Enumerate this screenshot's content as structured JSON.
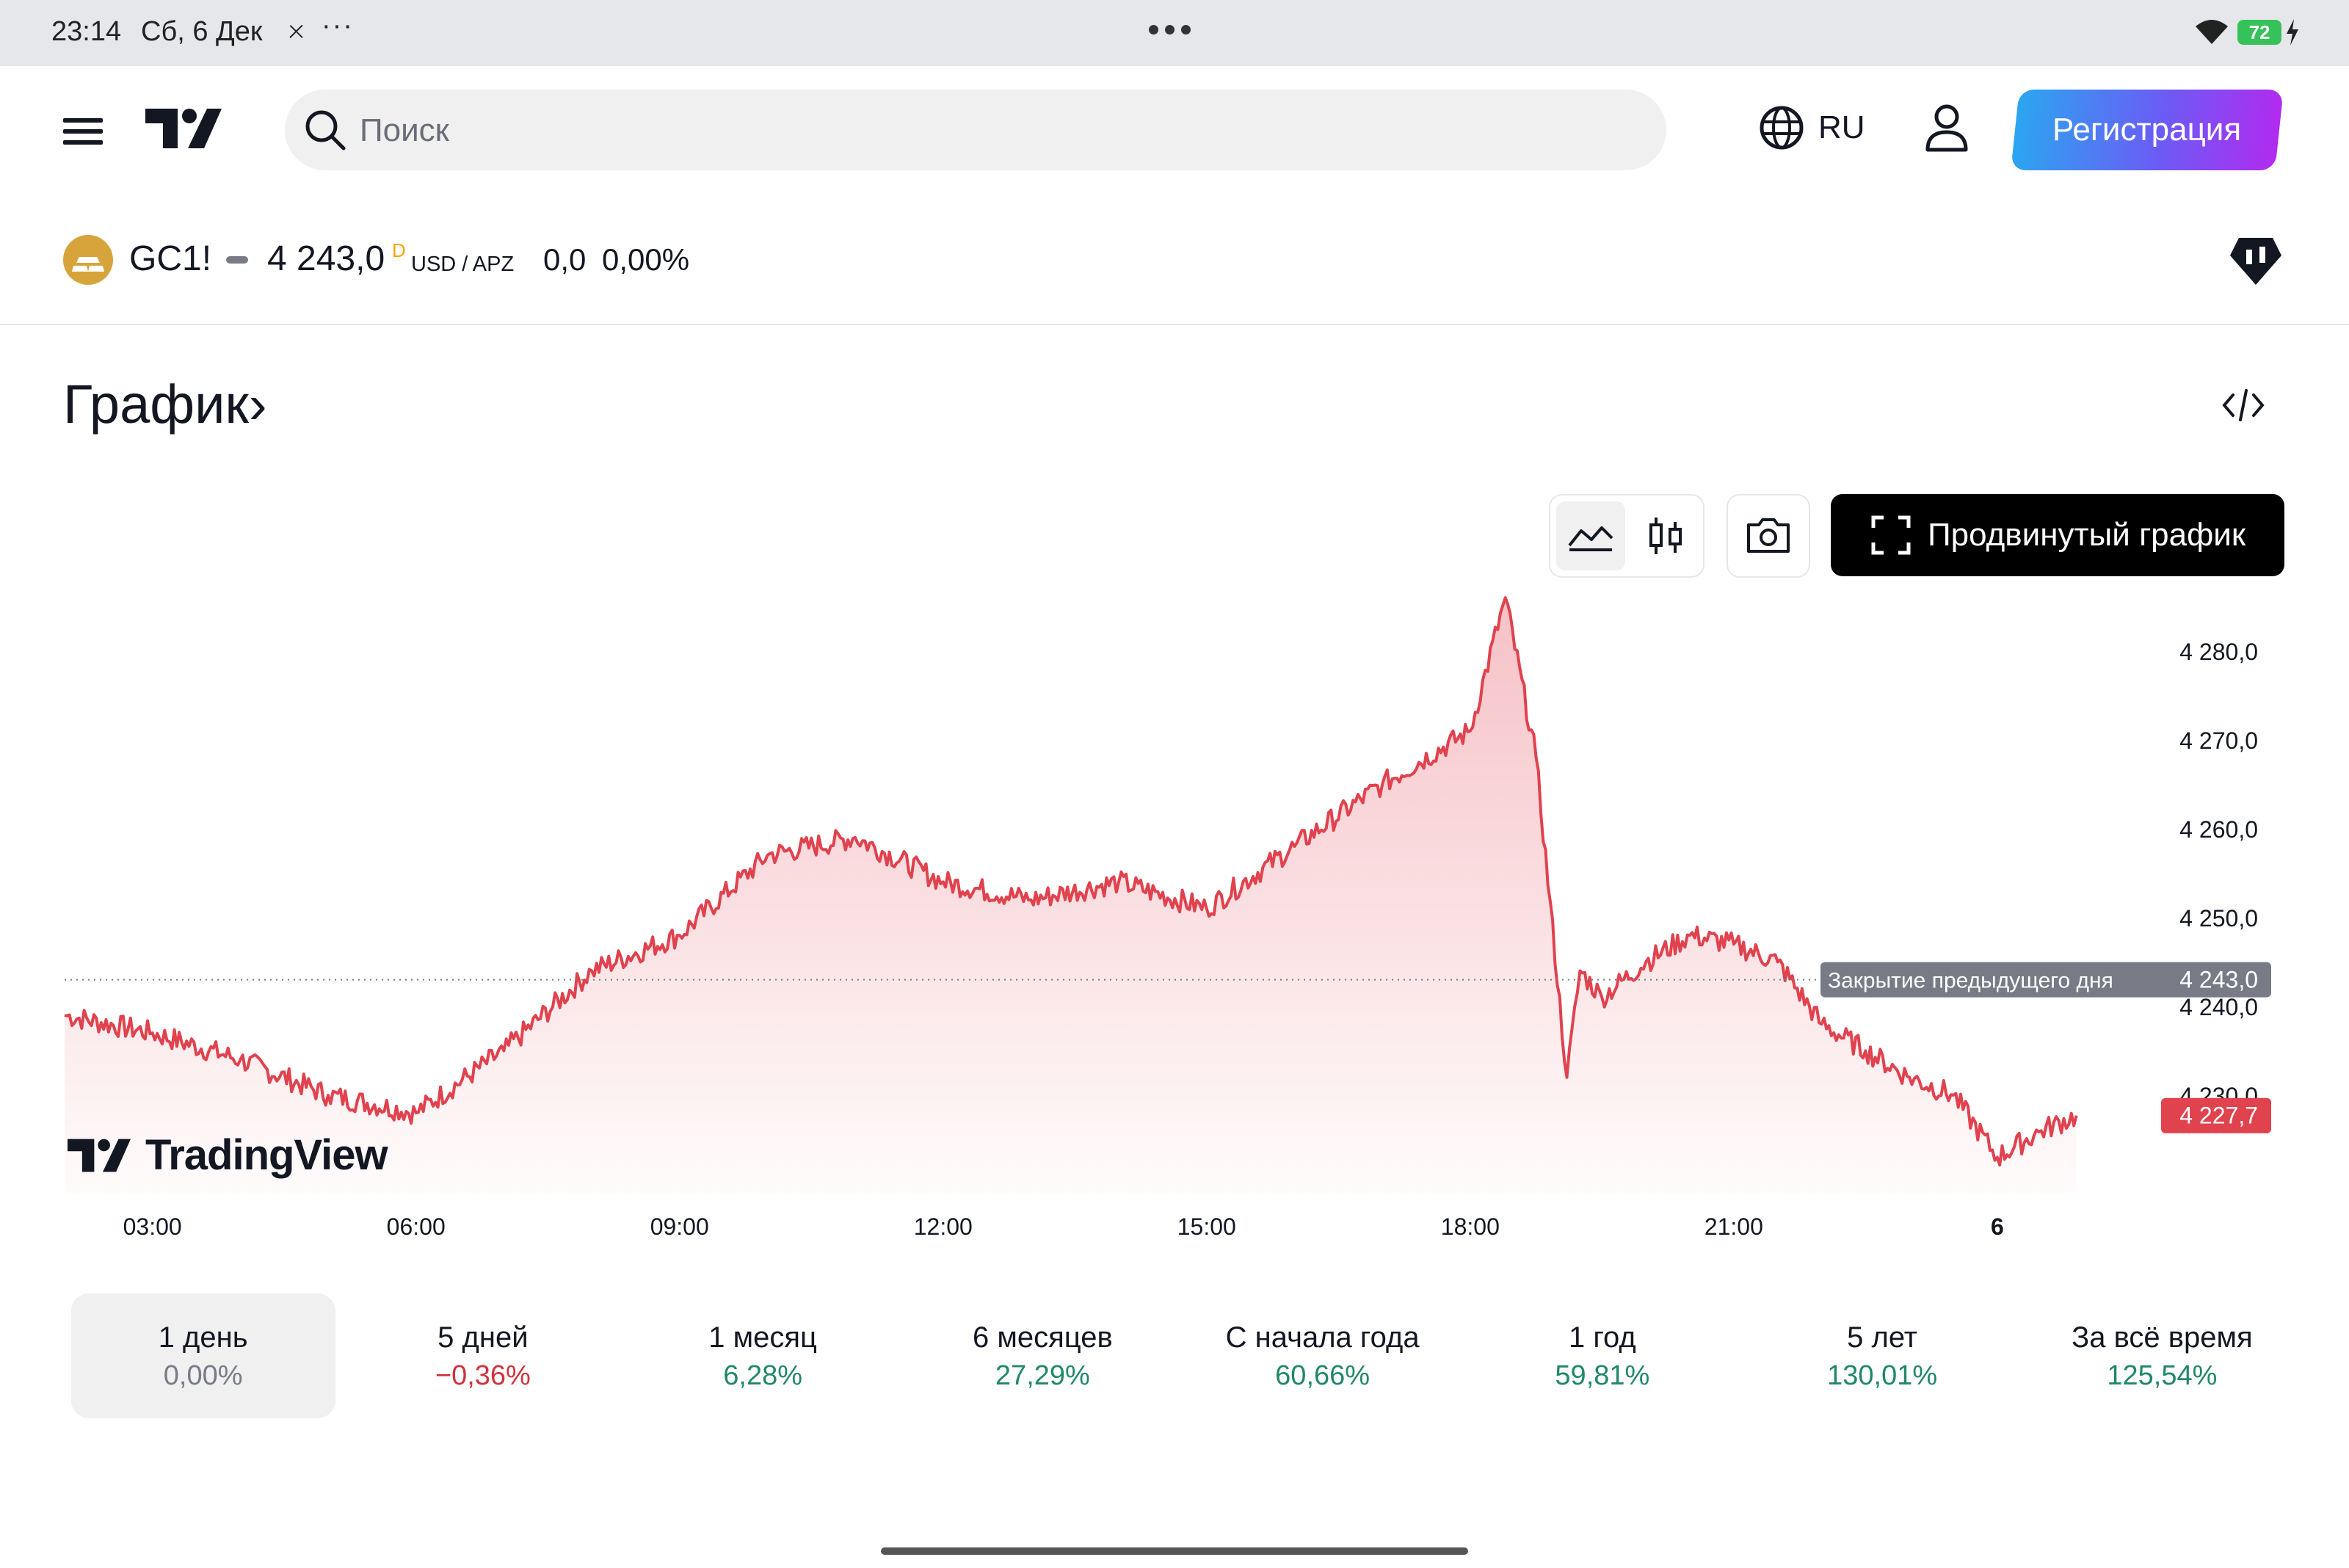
{
  "status_bar": {
    "time": "23:14",
    "date": "Сб, 6 Дек",
    "battery": "72"
  },
  "header": {
    "search_placeholder": "Поиск",
    "language": "RU",
    "register_label": "Регистрация"
  },
  "symbol": {
    "ticker": "GC1!",
    "price": "4 243,0",
    "delay_flag": "D",
    "currency": "USD / APZ",
    "change": "0,0",
    "change_percent": "0,00%"
  },
  "section": {
    "title": "График›"
  },
  "toolbar": {
    "advanced_label": "Продвинутый график"
  },
  "chart_data": {
    "type": "area",
    "watermark": "TradingView",
    "x_ticks": [
      "03:00",
      "06:00",
      "09:00",
      "12:00",
      "15:00",
      "18:00",
      "21:00",
      "6"
    ],
    "y_ticks": [
      "4 280,0",
      "4 270,0",
      "4 260,0",
      "4 250,0",
      "4 240,0",
      "4 230,0"
    ],
    "y_tick_values": [
      4280,
      4270,
      4260,
      4250,
      4240,
      4230
    ],
    "ylim": [
      4219,
      4288
    ],
    "x_hours": [
      2,
      3,
      4,
      5,
      6,
      7,
      8,
      9,
      10,
      11,
      12,
      13,
      14,
      15,
      16,
      17,
      18,
      18.4,
      18.75,
      19.1,
      19.25,
      19.5,
      20,
      20.5,
      21,
      21.5,
      22,
      22.5,
      23,
      23.5,
      24,
      24.5,
      24.9
    ],
    "y_values": [
      4239,
      4237,
      4234,
      4230,
      4228,
      4235,
      4244,
      4248,
      4257,
      4259,
      4254,
      4252,
      4254,
      4251,
      4258,
      4265,
      4271,
      4286,
      4268,
      4232,
      4244,
      4241,
      4245,
      4248,
      4247,
      4245,
      4238,
      4235,
      4232,
      4230,
      4223,
      4226,
      4227.7
    ],
    "previous_close": {
      "label": "Закрытие предыдущего дня",
      "value": 4243.0,
      "text": "4 243,0"
    },
    "last_price": {
      "value": 4227.7,
      "text": "4 227,7"
    },
    "line_color": "#e0424e",
    "fill_color": "#f4b6bc"
  },
  "periods": [
    {
      "label": "1 день",
      "value": "0,00%",
      "trend": "neutral",
      "active": true
    },
    {
      "label": "5 дней",
      "value": "−0,36%",
      "trend": "down",
      "active": false
    },
    {
      "label": "1 месяц",
      "value": "6,28%",
      "trend": "up",
      "active": false
    },
    {
      "label": "6 месяцев",
      "value": "27,29%",
      "trend": "up",
      "active": false
    },
    {
      "label": "С начала года",
      "value": "60,66%",
      "trend": "up",
      "active": false
    },
    {
      "label": "1 год",
      "value": "59,81%",
      "trend": "up",
      "active": false
    },
    {
      "label": "5 лет",
      "value": "130,01%",
      "trend": "up",
      "active": false
    },
    {
      "label": "За всё время",
      "value": "125,54%",
      "trend": "up",
      "active": false
    }
  ],
  "colors": {
    "up": "#22876c",
    "down": "#d1323c",
    "neutral": "#787b86"
  }
}
